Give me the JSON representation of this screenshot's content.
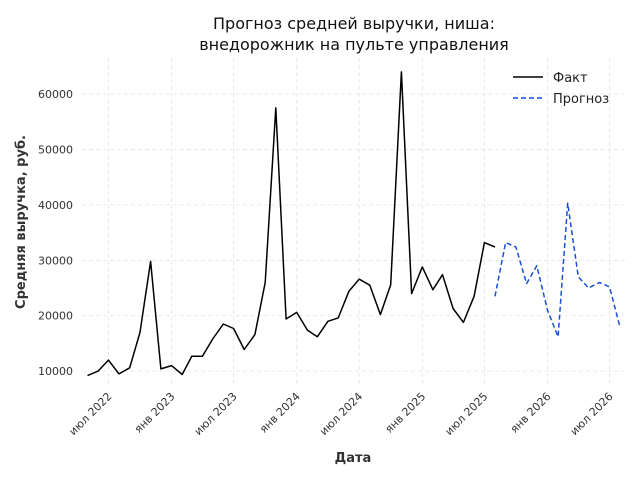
{
  "chart_data": {
    "type": "line",
    "title_line1": "Прогноз средней выручки, ниша:",
    "title_line2": "внедорожник на пульте управления",
    "xlabel": "Дата",
    "ylabel": "Средняя выручка, руб.",
    "ylim": [
      7500,
      66500
    ],
    "yticks": [
      10000,
      20000,
      30000,
      40000,
      50000,
      60000
    ],
    "xlim": [
      "2022-04-15",
      "2026-08-15"
    ],
    "xticks": [
      {
        "date": "2022-07-01",
        "label": "июл 2022"
      },
      {
        "date": "2023-01-01",
        "label": "янв 2023"
      },
      {
        "date": "2023-07-01",
        "label": "июл 2023"
      },
      {
        "date": "2024-01-01",
        "label": "янв 2024"
      },
      {
        "date": "2024-07-01",
        "label": "июл 2024"
      },
      {
        "date": "2025-01-01",
        "label": "янв 2025"
      },
      {
        "date": "2025-07-01",
        "label": "июл 2025"
      },
      {
        "date": "2026-01-01",
        "label": "янв 2026"
      },
      {
        "date": "2026-07-01",
        "label": "июл 2026"
      }
    ],
    "grid": true,
    "legend_position": "top-right",
    "series": [
      {
        "name": "Факт",
        "color": "#000000",
        "style": "solid",
        "x": [
          "2022-05",
          "2022-06",
          "2022-07",
          "2022-08",
          "2022-09",
          "2022-10",
          "2022-11",
          "2022-12",
          "2023-01",
          "2023-02",
          "2023-03",
          "2023-04",
          "2023-05",
          "2023-06",
          "2023-07",
          "2023-08",
          "2023-09",
          "2023-10",
          "2023-11",
          "2023-12",
          "2024-01",
          "2024-02",
          "2024-03",
          "2024-04",
          "2024-05",
          "2024-06",
          "2024-07",
          "2024-08",
          "2024-09",
          "2024-10",
          "2024-11",
          "2024-12",
          "2025-01",
          "2025-02",
          "2025-03",
          "2025-04",
          "2025-05",
          "2025-06",
          "2025-07",
          "2025-08"
        ],
        "values": [
          9200,
          10000,
          12000,
          9500,
          10600,
          17000,
          29800,
          10400,
          11000,
          9400,
          12700,
          12700,
          15800,
          18500,
          17700,
          13900,
          16600,
          26000,
          57500,
          19400,
          20600,
          17400,
          16200,
          19000,
          19600,
          24400,
          26600,
          25500,
          20200,
          25600,
          64000,
          24000,
          28800,
          24700,
          27400,
          21300,
          18800,
          23500,
          33200,
          32400
        ]
      },
      {
        "name": "Прогноз",
        "color": "#1a4fd6",
        "style": "dashed",
        "x": [
          "2025-08",
          "2025-09",
          "2025-10",
          "2025-11",
          "2025-12",
          "2026-01",
          "2026-02",
          "2026-03",
          "2026-04",
          "2026-05",
          "2026-06",
          "2026-07",
          "2026-08"
        ],
        "values": [
          23500,
          33200,
          32400,
          25800,
          29000,
          21000,
          16200,
          40300,
          27000,
          25000,
          26000,
          25200,
          17800
        ]
      }
    ]
  }
}
